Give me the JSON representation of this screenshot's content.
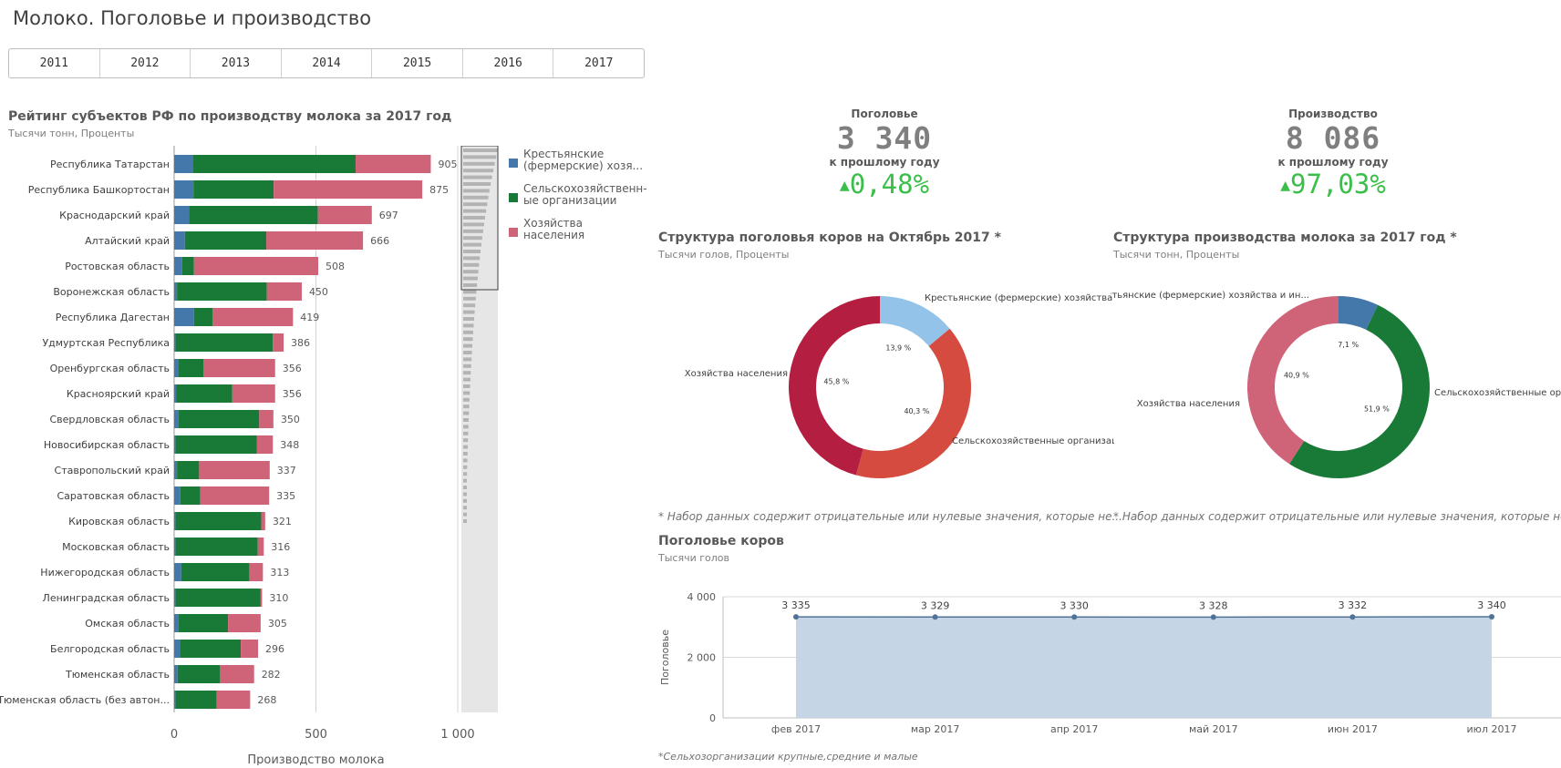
{
  "page": {
    "title": "Молоко. Поголовье и производство"
  },
  "years": [
    "2011",
    "2012",
    "2013",
    "2014",
    "2015",
    "2016",
    "2017"
  ],
  "colors": {
    "farm": "#4477aa",
    "agri": "#197a38",
    "household": "#cf6378",
    "kpi_up": "#3bbf4a",
    "area": "#c5d5e6",
    "line": "#4f7396"
  },
  "bar_panel": {
    "title": "Рейтинг субъектов РФ по производству молока за 2017 год",
    "subtitle": "Тысячи тонн, Проценты",
    "xlabel": "Производство молока"
  },
  "kpis": [
    {
      "label": "Поголовье",
      "value": "3 340",
      "sub": "к прошлому году",
      "change": "0,48%"
    },
    {
      "label": "Производство",
      "value": "8 086",
      "sub": "к прошлому году",
      "change": "97,03%"
    }
  ],
  "donut1": {
    "title": "Структура поголовья коров на Октябрь 2017 *",
    "subtitle": "Тысячи голов, Проценты",
    "note": "* Набор данных содержит отрицательные или нулевые значения, которые не..."
  },
  "donut2": {
    "title": "Структура производства молока за 2017 год *",
    "subtitle": "Тысячи тонн, Проценты",
    "note": "* Набор данных содержит отрицательные или нулевые значения, которые не..."
  },
  "line_panel": {
    "title": "Поголовье коров",
    "subtitle": "Тысячи голов",
    "footnote": "*Сельхозорганизации крупные,средние и малые"
  },
  "chart_data": [
    {
      "type": "bar",
      "orientation": "horizontal",
      "stacked": true,
      "xlabel": "Производство молока",
      "xlim": [
        0,
        1000
      ],
      "xticks": [
        "0",
        "500",
        "1 000"
      ],
      "grid": true,
      "legend_position": "right",
      "legend": [
        "Крестьянские (фермерские) хозя...",
        "Сельскохозяйственн-ые организации",
        "Хозяйства населения"
      ],
      "categories": [
        "Республика Татарстан",
        "Республика Башкортостан",
        "Краснодарский край",
        "Алтайский край",
        "Ростовская область",
        "Воронежская область",
        "Республика Дагестан",
        "Удмуртская Республика",
        "Оренбургская область",
        "Красноярский край",
        "Свердловская область",
        "Новосибирская область",
        "Ставропольский край",
        "Саратовская область",
        "Кировская область",
        "Московская область",
        "Нижегородская область",
        "Ленинградская область",
        "Омская область",
        "Белгородская область",
        "Тюменская область",
        "Тюменская область (без автон..."
      ],
      "totals": [
        905,
        875,
        697,
        666,
        508,
        450,
        419,
        386,
        356,
        356,
        350,
        348,
        337,
        335,
        321,
        316,
        313,
        310,
        305,
        296,
        282,
        268
      ],
      "total_labels": [
        "905",
        "875",
        "697",
        "666",
        "508",
        "450",
        "419",
        "386",
        "356",
        "356",
        "350",
        "348",
        "337",
        "335",
        "321",
        "316",
        "313",
        "310",
        "305",
        "296",
        "282",
        "268"
      ],
      "series": [
        {
          "name": "Крестьянские (фермерские) хозяйства и ИП",
          "values": [
            65,
            68,
            52,
            38,
            28,
            10,
            70,
            5,
            14,
            8,
            15,
            5,
            10,
            22,
            5,
            5,
            25,
            5,
            15,
            20,
            12,
            5
          ]
        },
        {
          "name": "Сельскохозяйственные организации",
          "values": [
            575,
            283,
            455,
            287,
            42,
            317,
            65,
            343,
            90,
            197,
            285,
            286,
            78,
            70,
            302,
            290,
            240,
            300,
            175,
            215,
            150,
            145
          ]
        },
        {
          "name": "Хозяйства населения",
          "values": [
            265,
            524,
            190,
            341,
            438,
            123,
            284,
            38,
            252,
            151,
            50,
            57,
            249,
            243,
            14,
            21,
            48,
            5,
            115,
            61,
            120,
            118
          ]
        }
      ]
    },
    {
      "type": "pie",
      "donut": true,
      "title": "Структура поголовья коров на Октябрь 2017 *",
      "labels": [
        "Крестьянские (фермерские) хозяйства и...",
        "Сельскохозяйственные организац...",
        "Хозяйства населения"
      ],
      "values": [
        13.9,
        40.3,
        45.8
      ],
      "value_labels": [
        "13,9 %",
        "40,3 %",
        "45,8 %"
      ],
      "colors": [
        "#93c3e8",
        "#d64b3f",
        "#b41e40"
      ]
    },
    {
      "type": "pie",
      "donut": true,
      "title": "Структура производства молока за 2017 год *",
      "labels": [
        "Крестьянские (фермерские) хозяйства и ин...",
        "Сельскохозяйственные орг...",
        "Хозяйства населения"
      ],
      "values": [
        7.1,
        51.9,
        40.9
      ],
      "value_labels": [
        "7,1 %",
        "51,9 %",
        "40,9 %"
      ],
      "colors": [
        "#4477aa",
        "#197a38",
        "#cf6378"
      ]
    },
    {
      "type": "area",
      "title": "Поголовье коров",
      "ylabel": "Поголовье",
      "ylim": [
        0,
        4000
      ],
      "yticks": [
        "0",
        "2 000",
        "4 000"
      ],
      "x": [
        "фев 2017",
        "мар 2017",
        "апр 2017",
        "май 2017",
        "июн 2017",
        "июл 2017"
      ],
      "values": [
        3335,
        3329,
        3330,
        3328,
        3332,
        3340
      ],
      "value_labels": [
        "3 335",
        "3 329",
        "3 330",
        "3 328",
        "3 332",
        "3 340"
      ],
      "grid": true
    }
  ]
}
